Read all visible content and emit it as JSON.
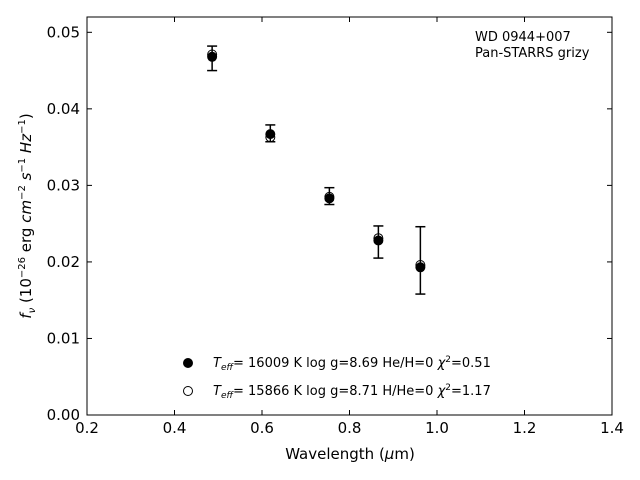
{
  "chart_data": {
    "type": "scatter",
    "annotations": [
      "WD 0944+007",
      "Pan-STARRS grizy"
    ],
    "xlabel": "Wavelength (μm)",
    "ylabel": "f_ν (10^-26 erg cm^-2 s^-1 Hz^-1)",
    "xlim": [
      0.2,
      1.4
    ],
    "ylim": [
      0.0,
      0.052
    ],
    "xticks": [
      0.2,
      0.4,
      0.6,
      0.8,
      1.0,
      1.2,
      1.4
    ],
    "xtick_labels": [
      "0.2",
      "0.4",
      "0.6",
      "0.8",
      "1.0",
      "1.2",
      "1.4"
    ],
    "yticks": [
      0.0,
      0.01,
      0.02,
      0.03,
      0.04,
      0.05
    ],
    "ytick_labels": [
      "0.00",
      "0.01",
      "0.02",
      "0.03",
      "0.04",
      "0.05"
    ],
    "grid": false,
    "legend_position": "bottom-center",
    "observed": {
      "x": [
        0.486,
        0.619,
        0.754,
        0.866,
        0.962
      ],
      "y": [
        0.0466,
        0.0368,
        0.0286,
        0.0226,
        0.0202
      ],
      "yerr": [
        0.0016,
        0.0011,
        0.0011,
        0.0021,
        0.0044
      ]
    },
    "series": [
      {
        "legend": "T_eff= 16009 K  log g=8.69  He/H=0  χ²=0.51",
        "marker": "filled-circle",
        "x": [
          0.486,
          0.619,
          0.754,
          0.866,
          0.962
        ],
        "y": [
          0.0468,
          0.0367,
          0.0283,
          0.0228,
          0.0193
        ]
      },
      {
        "legend": "T_eff= 15866 K  log g=8.71  H/He=0  χ²=1.17",
        "marker": "open-circle",
        "x": [
          0.486,
          0.619,
          0.754,
          0.866,
          0.962
        ],
        "y": [
          0.0471,
          0.0363,
          0.0285,
          0.0231,
          0.0196
        ]
      }
    ]
  }
}
